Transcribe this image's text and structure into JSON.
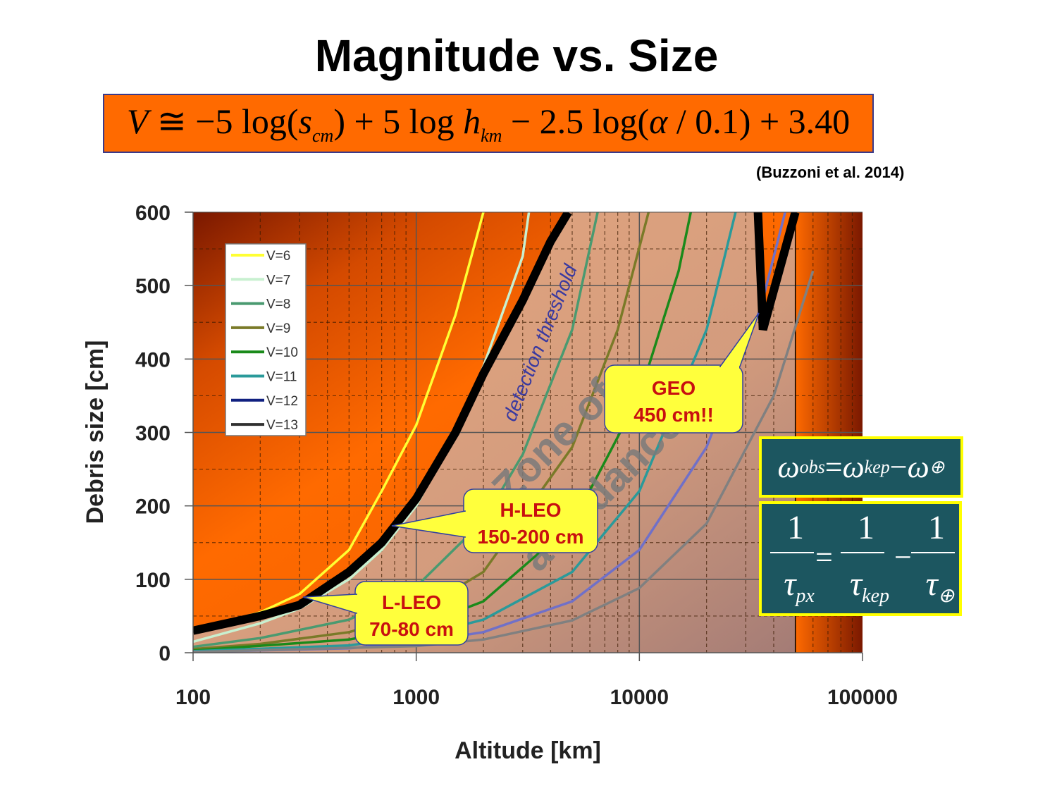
{
  "slide": {
    "title": "Magnitude vs. Size",
    "formula": {
      "V": "V",
      "approx": " ≅ −5 log(",
      "s": "s",
      "s_sub": "cm",
      "mid": ") + 5 log ",
      "h": "h",
      "h_sub": "km",
      "tail1": " − 2.5 log(",
      "alpha": "α",
      "tail2": " / 0.1) + 3.40"
    },
    "citation": "(Buzzoni et al. 2014)"
  },
  "equations": {
    "omega": {
      "lhs": "ω",
      "lhs_sub": "obs",
      "eq": " = ",
      "t1": "ω",
      "t1_sub": "kep",
      "minus": " − ",
      "t2": "ω",
      "t2_sub": "⊕"
    },
    "tau": {
      "one": "1",
      "tau": "τ",
      "sub1": "px",
      "sub2": "kep",
      "sub3": "⊕",
      "eq": "=",
      "minus": "−"
    }
  },
  "chart_data": {
    "type": "line",
    "xlabel": "Altitude [km]",
    "ylabel": "Debris size [cm]",
    "xscale": "log",
    "xlim": [
      100,
      100000
    ],
    "ylim": [
      0,
      600
    ],
    "x_ticks": [
      "100",
      "1000",
      "10000",
      "100000"
    ],
    "y_ticks": [
      "0",
      "100",
      "200",
      "300",
      "400",
      "500",
      "600"
    ],
    "grid": true,
    "legend_position": "top-left",
    "series": [
      {
        "name": "V=6",
        "color": "#ffff33",
        "points": [
          [
            100,
            30
          ],
          [
            200,
            55
          ],
          [
            300,
            80
          ],
          [
            500,
            140
          ],
          [
            700,
            220
          ],
          [
            1000,
            310
          ],
          [
            1500,
            460
          ],
          [
            2000,
            600
          ]
        ]
      },
      {
        "name": "V=7",
        "color": "#c8f0d0",
        "points": [
          [
            100,
            15
          ],
          [
            200,
            40
          ],
          [
            300,
            60
          ],
          [
            500,
            100
          ],
          [
            700,
            140
          ],
          [
            1000,
            200
          ],
          [
            1500,
            300
          ],
          [
            2000,
            390
          ],
          [
            3000,
            540
          ],
          [
            3200,
            600
          ]
        ]
      },
      {
        "name": "V=8",
        "color": "#4a9a70",
        "points": [
          [
            100,
            8
          ],
          [
            200,
            20
          ],
          [
            500,
            45
          ],
          [
            1000,
            90
          ],
          [
            2000,
            180
          ],
          [
            3000,
            270
          ],
          [
            5000,
            440
          ],
          [
            6500,
            600
          ]
        ]
      },
      {
        "name": "V=9",
        "color": "#7a7a28",
        "points": [
          [
            100,
            5
          ],
          [
            200,
            12
          ],
          [
            500,
            28
          ],
          [
            1000,
            55
          ],
          [
            2000,
            110
          ],
          [
            5000,
            280
          ],
          [
            8000,
            440
          ],
          [
            11000,
            600
          ]
        ]
      },
      {
        "name": "V=10",
        "color": "#1a8a1a",
        "points": [
          [
            100,
            3
          ],
          [
            500,
            18
          ],
          [
            1000,
            35
          ],
          [
            2000,
            70
          ],
          [
            5000,
            175
          ],
          [
            10000,
            350
          ],
          [
            15000,
            520
          ],
          [
            17000,
            600
          ]
        ]
      },
      {
        "name": "V=11",
        "color": "#2a9a9a",
        "points": [
          [
            100,
            2
          ],
          [
            500,
            10
          ],
          [
            1000,
            22
          ],
          [
            2000,
            45
          ],
          [
            5000,
            110
          ],
          [
            10000,
            220
          ],
          [
            20000,
            440
          ],
          [
            27000,
            600
          ]
        ]
      },
      {
        "name": "V=12",
        "color": "#7070c8",
        "points": [
          [
            100,
            1
          ],
          [
            500,
            6
          ],
          [
            1000,
            14
          ],
          [
            2000,
            28
          ],
          [
            5000,
            70
          ],
          [
            10000,
            140
          ],
          [
            20000,
            280
          ],
          [
            35000,
            470
          ],
          [
            45000,
            600
          ]
        ]
      },
      {
        "name": "V=13",
        "color": "#808080",
        "points": [
          [
            100,
            1
          ],
          [
            1000,
            9
          ],
          [
            2000,
            18
          ],
          [
            5000,
            44
          ],
          [
            10000,
            88
          ],
          [
            20000,
            176
          ],
          [
            40000,
            350
          ],
          [
            60000,
            520
          ]
        ]
      }
    ],
    "threshold": {
      "color": "#000000",
      "points": [
        [
          100,
          30
        ],
        [
          200,
          50
        ],
        [
          300,
          65
        ],
        [
          500,
          110
        ],
        [
          700,
          150
        ],
        [
          1000,
          210
        ],
        [
          1500,
          300
        ],
        [
          2000,
          380
        ],
        [
          3000,
          480
        ],
        [
          4000,
          560
        ],
        [
          4800,
          600
        ]
      ],
      "geo_points": [
        [
          34000,
          600
        ],
        [
          35800,
          440
        ],
        [
          50000,
          600
        ]
      ]
    },
    "annotations": {
      "threshold_label": "detection threshold",
      "zone_label_1": "Zone of",
      "zone_label_2": "avoidance",
      "callouts": [
        {
          "line1": "L-LEO",
          "line2": "70-80 cm"
        },
        {
          "line1": "H-LEO",
          "line2": "150-200 cm"
        },
        {
          "line1": "GEO",
          "line2": "450 cm!!"
        }
      ]
    }
  }
}
